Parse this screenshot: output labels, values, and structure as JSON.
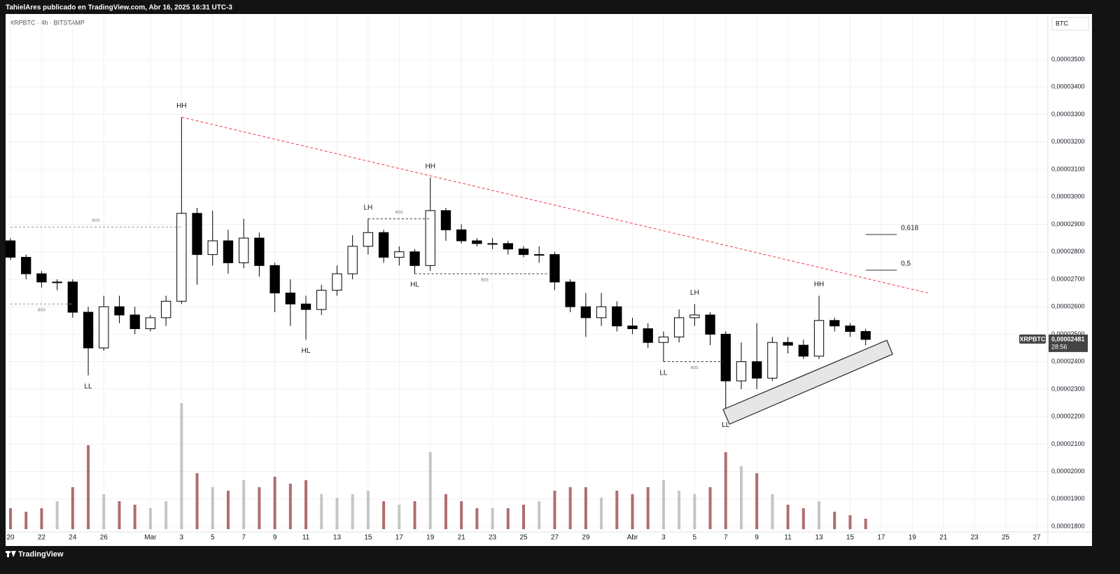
{
  "header": {
    "text": "TahielAres publicado en TradingView.com, Abr 16, 2025 16:31 UTC-3"
  },
  "footer": {
    "brand": "TradingView"
  },
  "chart_data": {
    "type": "candlestick",
    "title": "XRPBTC · 4h · BITSTAMP",
    "symbol": "XRPBTC",
    "currency": "BTC",
    "countdown": "28:56",
    "last_price": {
      "value": 2.481e-05,
      "label": "0,00002481"
    },
    "up_color": "#ffffff",
    "down_color": "#000000",
    "border_color": "#000000",
    "volume_up_color": "#b8b8b8",
    "volume_down_color": "#9c4a4a",
    "grid": true,
    "x": [
      "2025-02-20",
      "2025-02-21",
      "2025-02-22",
      "2025-02-23",
      "2025-02-24",
      "2025-02-25",
      "2025-02-26",
      "2025-02-27",
      "2025-02-28",
      "2025-03-01",
      "2025-03-02",
      "2025-03-03",
      "2025-03-04",
      "2025-03-05",
      "2025-03-06",
      "2025-03-07",
      "2025-03-08",
      "2025-03-09",
      "2025-03-10",
      "2025-03-11",
      "2025-03-12",
      "2025-03-13",
      "2025-03-14",
      "2025-03-15",
      "2025-03-16",
      "2025-03-17",
      "2025-03-18",
      "2025-03-19",
      "2025-03-20",
      "2025-03-21",
      "2025-03-22",
      "2025-03-23",
      "2025-03-24",
      "2025-03-25",
      "2025-03-26",
      "2025-03-27",
      "2025-03-28",
      "2025-03-29",
      "2025-03-30",
      "2025-03-31",
      "2025-04-01",
      "2025-04-02",
      "2025-04-03",
      "2025-04-04",
      "2025-04-05",
      "2025-04-06",
      "2025-04-07",
      "2025-04-08",
      "2025-04-09",
      "2025-04-10",
      "2025-04-11",
      "2025-04-12",
      "2025-04-13",
      "2025-04-14",
      "2025-04-15",
      "2025-04-16"
    ],
    "open": [
      2.84e-05,
      2.78e-05,
      2.72e-05,
      2.69e-05,
      2.69e-05,
      2.58e-05,
      2.45e-05,
      2.6e-05,
      2.57e-05,
      2.52e-05,
      2.56e-05,
      2.62e-05,
      2.94e-05,
      2.79e-05,
      2.84e-05,
      2.76e-05,
      2.85e-05,
      2.75e-05,
      2.65e-05,
      2.61e-05,
      2.59e-05,
      2.66e-05,
      2.72e-05,
      2.82e-05,
      2.87e-05,
      2.78e-05,
      2.8e-05,
      2.75e-05,
      2.95e-05,
      2.88e-05,
      2.84e-05,
      2.83e-05,
      2.83e-05,
      2.81e-05,
      2.79e-05,
      2.79e-05,
      2.69e-05,
      2.6e-05,
      2.56e-05,
      2.6e-05,
      2.53e-05,
      2.52e-05,
      2.47e-05,
      2.49e-05,
      2.56e-05,
      2.57e-05,
      2.5e-05,
      2.33e-05,
      2.4e-05,
      2.34e-05,
      2.47e-05,
      2.46e-05,
      2.42e-05,
      2.55e-05,
      2.53e-05,
      2.51e-05
    ],
    "high": [
      2.85e-05,
      2.79e-05,
      2.73e-05,
      2.7e-05,
      2.7e-05,
      2.6e-05,
      2.64e-05,
      2.64e-05,
      2.6e-05,
      2.57e-05,
      2.64e-05,
      3.29e-05,
      2.96e-05,
      2.95e-05,
      2.88e-05,
      2.92e-05,
      2.87e-05,
      2.76e-05,
      2.7e-05,
      2.64e-05,
      2.68e-05,
      2.75e-05,
      2.86e-05,
      2.92e-05,
      2.88e-05,
      2.82e-05,
      2.81e-05,
      3.07e-05,
      2.96e-05,
      2.9e-05,
      2.85e-05,
      2.85e-05,
      2.84e-05,
      2.82e-05,
      2.82e-05,
      2.8e-05,
      2.7e-05,
      2.65e-05,
      2.65e-05,
      2.62e-05,
      2.56e-05,
      2.54e-05,
      2.51e-05,
      2.59e-05,
      2.61e-05,
      2.58e-05,
      2.51e-05,
      2.47e-05,
      2.54e-05,
      2.49e-05,
      2.49e-05,
      2.48e-05,
      2.64e-05,
      2.56e-05,
      2.54e-05,
      2.52e-05
    ],
    "low": [
      2.77e-05,
      2.7e-05,
      2.67e-05,
      2.66e-05,
      2.56e-05,
      2.35e-05,
      2.44e-05,
      2.54e-05,
      2.5e-05,
      2.51e-05,
      2.53e-05,
      2.61e-05,
      2.68e-05,
      2.75e-05,
      2.72e-05,
      2.74e-05,
      2.71e-05,
      2.58e-05,
      2.53e-05,
      2.48e-05,
      2.57e-05,
      2.64e-05,
      2.7e-05,
      2.79e-05,
      2.76e-05,
      2.75e-05,
      2.72e-05,
      2.73e-05,
      2.84e-05,
      2.83e-05,
      2.82e-05,
      2.81e-05,
      2.79e-05,
      2.78e-05,
      2.76e-05,
      2.66e-05,
      2.58e-05,
      2.49e-05,
      2.53e-05,
      2.51e-05,
      2.5e-05,
      2.45e-05,
      2.4e-05,
      2.47e-05,
      2.53e-05,
      2.46e-05,
      2.21e-05,
      2.3e-05,
      2.3e-05,
      2.33e-05,
      2.43e-05,
      2.41e-05,
      2.41e-05,
      2.51e-05,
      2.49e-05,
      2.46e-05
    ],
    "close": [
      2.78e-05,
      2.72e-05,
      2.69e-05,
      2.69e-05,
      2.58e-05,
      2.45e-05,
      2.6e-05,
      2.57e-05,
      2.52e-05,
      2.56e-05,
      2.62e-05,
      2.94e-05,
      2.79e-05,
      2.84e-05,
      2.76e-05,
      2.85e-05,
      2.75e-05,
      2.65e-05,
      2.61e-05,
      2.59e-05,
      2.66e-05,
      2.72e-05,
      2.82e-05,
      2.87e-05,
      2.78e-05,
      2.8e-05,
      2.75e-05,
      2.95e-05,
      2.88e-05,
      2.84e-05,
      2.83e-05,
      2.83e-05,
      2.81e-05,
      2.79e-05,
      2.79e-05,
      2.69e-05,
      2.6e-05,
      2.56e-05,
      2.6e-05,
      2.53e-05,
      2.52e-05,
      2.47e-05,
      2.49e-05,
      2.56e-05,
      2.57e-05,
      2.5e-05,
      2.33e-05,
      2.4e-05,
      2.34e-05,
      2.47e-05,
      2.46e-05,
      2.42e-05,
      2.55e-05,
      2.53e-05,
      2.51e-05,
      2.481e-05
    ],
    "volume": [
      30,
      25,
      30,
      40,
      60,
      120,
      50,
      40,
      35,
      30,
      40,
      180,
      80,
      60,
      55,
      70,
      60,
      75,
      65,
      70,
      50,
      45,
      50,
      55,
      40,
      35,
      40,
      110,
      50,
      40,
      30,
      30,
      30,
      35,
      40,
      55,
      60,
      60,
      45,
      55,
      50,
      60,
      70,
      55,
      50,
      60,
      110,
      90,
      80,
      50,
      35,
      30,
      40,
      25,
      20,
      15
    ],
    "xlim": [
      "2025-02-20",
      "2025-04-27"
    ],
    "xticks": [
      {
        "value": "2025-02-20",
        "label": "20"
      },
      {
        "value": "2025-02-22",
        "label": "22"
      },
      {
        "value": "2025-02-24",
        "label": "24"
      },
      {
        "value": "2025-02-26",
        "label": "26"
      },
      {
        "value": "2025-03-01",
        "label": "Mar"
      },
      {
        "value": "2025-03-03",
        "label": "3"
      },
      {
        "value": "2025-03-05",
        "label": "5"
      },
      {
        "value": "2025-03-07",
        "label": "7"
      },
      {
        "value": "2025-03-09",
        "label": "9"
      },
      {
        "value": "2025-03-11",
        "label": "11"
      },
      {
        "value": "2025-03-13",
        "label": "13"
      },
      {
        "value": "2025-03-15",
        "label": "15"
      },
      {
        "value": "2025-03-17",
        "label": "17"
      },
      {
        "value": "2025-03-19",
        "label": "19"
      },
      {
        "value": "2025-03-21",
        "label": "21"
      },
      {
        "value": "2025-03-23",
        "label": "23"
      },
      {
        "value": "2025-03-25",
        "label": "25"
      },
      {
        "value": "2025-03-27",
        "label": "27"
      },
      {
        "value": "2025-03-29",
        "label": "29"
      },
      {
        "value": "2025-04-01",
        "label": "Abr"
      },
      {
        "value": "2025-04-03",
        "label": "3"
      },
      {
        "value": "2025-04-05",
        "label": "5"
      },
      {
        "value": "2025-04-07",
        "label": "7"
      },
      {
        "value": "2025-04-09",
        "label": "9"
      },
      {
        "value": "2025-04-11",
        "label": "11"
      },
      {
        "value": "2025-04-13",
        "label": "13"
      },
      {
        "value": "2025-04-15",
        "label": "15"
      },
      {
        "value": "2025-04-17",
        "label": "17"
      },
      {
        "value": "2025-04-19",
        "label": "19"
      },
      {
        "value": "2025-04-21",
        "label": "21"
      },
      {
        "value": "2025-04-23",
        "label": "23"
      },
      {
        "value": "2025-04-25",
        "label": "25"
      },
      {
        "value": "2025-04-27",
        "label": "27"
      }
    ],
    "ylim": [
      1.76e-05,
      3.6e-05
    ],
    "yticks": [
      {
        "value": 1.8e-05,
        "label": "0,00001800"
      },
      {
        "value": 1.9e-05,
        "label": "0,00001900"
      },
      {
        "value": 2e-05,
        "label": "0,00002000"
      },
      {
        "value": 2.1e-05,
        "label": "0,00002100"
      },
      {
        "value": 2.2e-05,
        "label": "0,00002200"
      },
      {
        "value": 2.3e-05,
        "label": "0,00002300"
      },
      {
        "value": 2.4e-05,
        "label": "0,00002400"
      },
      {
        "value": 2.5e-05,
        "label": "0,00002500"
      },
      {
        "value": 2.6e-05,
        "label": "0,00002600"
      },
      {
        "value": 2.7e-05,
        "label": "0,00002700"
      },
      {
        "value": 2.8e-05,
        "label": "0,00002800"
      },
      {
        "value": 2.9e-05,
        "label": "0,00002900"
      },
      {
        "value": 3e-05,
        "label": "0,00003000"
      },
      {
        "value": 3.1e-05,
        "label": "0,00003100"
      },
      {
        "value": 3.2e-05,
        "label": "0,00003200"
      },
      {
        "value": 3.3e-05,
        "label": "0,00003300"
      },
      {
        "value": 3.4e-05,
        "label": "0,00003400"
      },
      {
        "value": 3.5e-05,
        "label": "0,00003500"
      }
    ],
    "annotations": [
      {
        "text": "HH",
        "x": "2025-03-03",
        "y": 3.29e-05,
        "position": "above"
      },
      {
        "text": "LL",
        "x": "2025-02-25",
        "y": 2.35e-05,
        "position": "below"
      },
      {
        "text": "HL",
        "x": "2025-03-11",
        "y": 2.48e-05,
        "position": "below"
      },
      {
        "text": "LH",
        "x": "2025-03-15",
        "y": 2.92e-05,
        "position": "above"
      },
      {
        "text": "HH",
        "x": "2025-03-19",
        "y": 3.07e-05,
        "position": "above"
      },
      {
        "text": "HL",
        "x": "2025-03-18",
        "y": 2.72e-05,
        "position": "below"
      },
      {
        "text": "LH",
        "x": "2025-04-05",
        "y": 2.61e-05,
        "position": "above"
      },
      {
        "text": "LL",
        "x": "2025-04-03",
        "y": 2.4e-05,
        "position": "below"
      },
      {
        "text": "LL",
        "x": "2025-04-07",
        "y": 2.21e-05,
        "position": "below"
      },
      {
        "text": "HH",
        "x": "2025-04-13",
        "y": 2.64e-05,
        "position": "above"
      }
    ],
    "levels": [
      {
        "text": "BOS",
        "y": 2.89e-05,
        "x": [
          "2025-02-20",
          "2025-03-03"
        ],
        "position": "above"
      },
      {
        "text": "BOS",
        "y": 2.61e-05,
        "x": [
          "2025-02-20",
          "2025-02-24"
        ],
        "position": "below"
      },
      {
        "text": "BOS",
        "y": 2.92e-05,
        "x": [
          "2025-03-15",
          "2025-03-19"
        ],
        "position": "above"
      },
      {
        "text": "BOS",
        "y": 2.72e-05,
        "x": [
          "2025-03-18",
          "2025-03-27"
        ],
        "position": "below"
      },
      {
        "text": "BOS",
        "y": 2.4e-05,
        "x": [
          "2025-04-03",
          "2025-04-07"
        ],
        "position": "below"
      }
    ],
    "fib_levels": [
      {
        "text": "0,618",
        "y": 2.863e-05,
        "x": [
          "2025-04-16",
          "2025-04-18"
        ]
      },
      {
        "text": "0,5",
        "y": 2.733e-05,
        "x": [
          "2025-04-16",
          "2025-04-18"
        ]
      }
    ],
    "trendline": {
      "x": [
        "2025-03-03",
        "2025-04-20"
      ],
      "y": [
        3.29e-05,
        2.65e-05
      ],
      "color": "#f23645"
    }
  }
}
